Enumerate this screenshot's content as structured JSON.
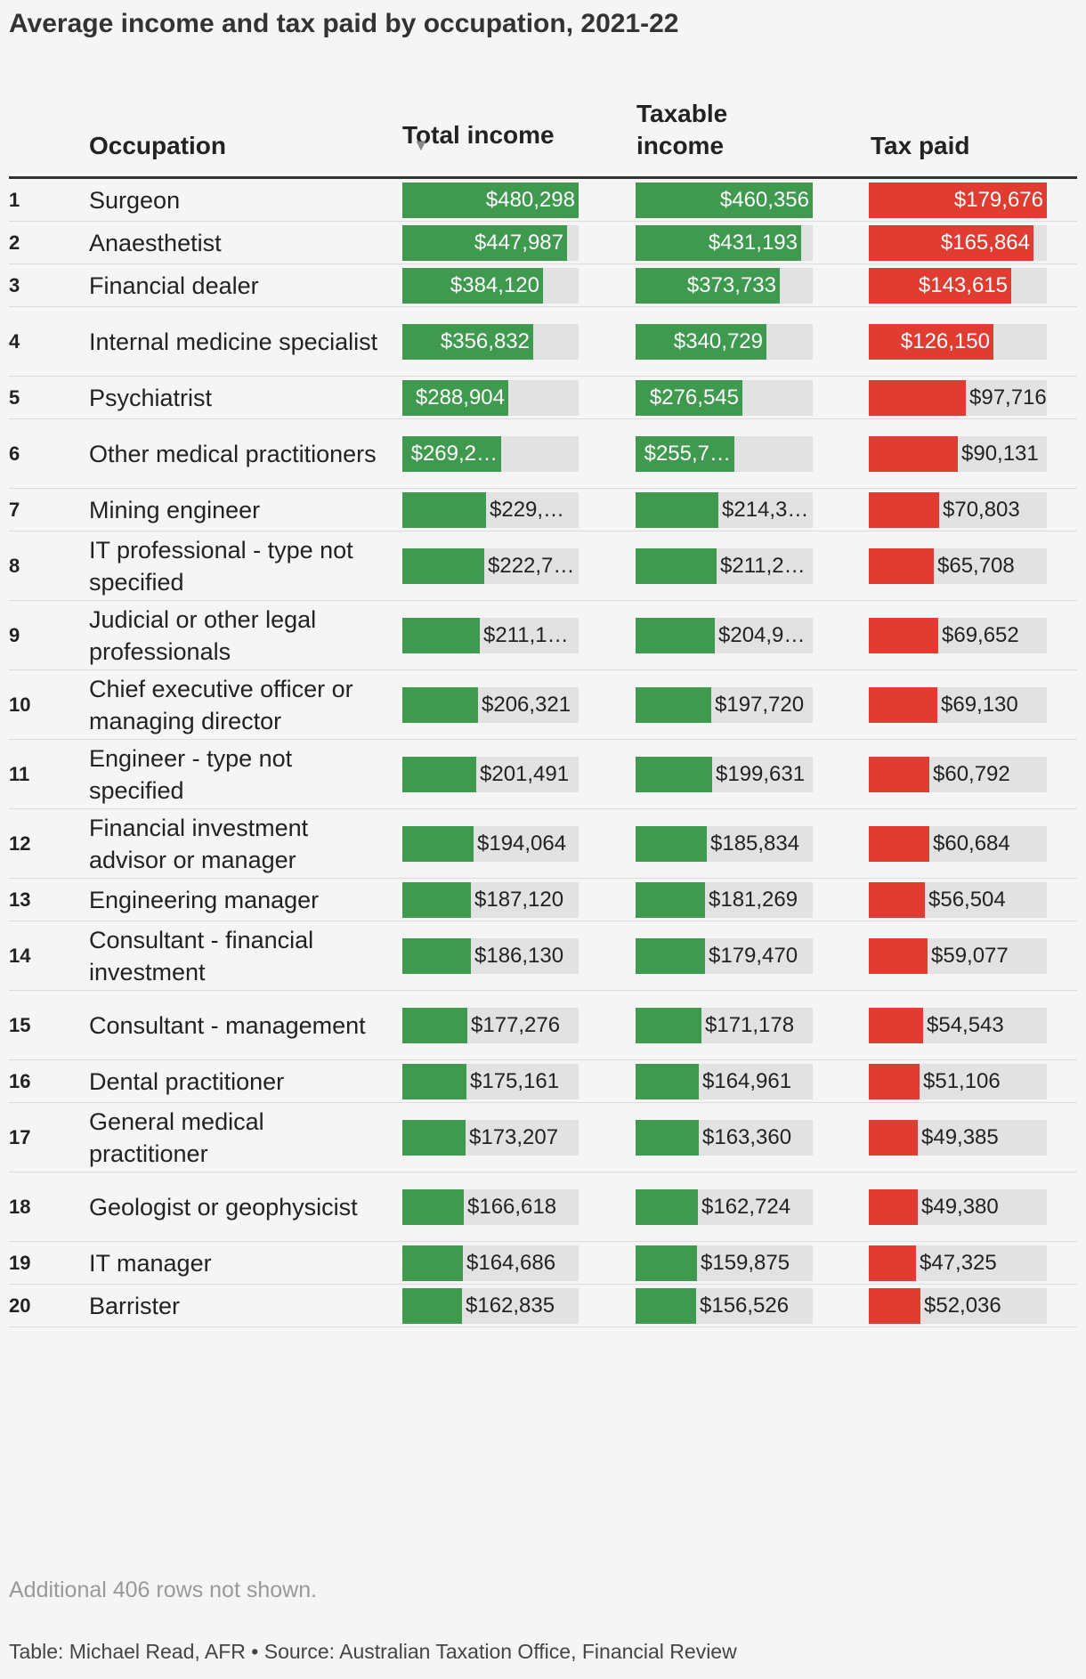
{
  "title": "Average income and tax paid by occupation, 2021-22",
  "columns": {
    "occupation": "Occupation",
    "total_income": "Total income",
    "taxable_income": "Taxable income",
    "tax_paid": "Tax paid",
    "sort_indicator": "▼"
  },
  "note": "Additional 406 rows not shown.",
  "source": "Table: Michael Read, AFR • Source: Australian Taxation Office, Financial Review",
  "colors": {
    "income": "#3f9a4f",
    "tax": "#e03c31",
    "track": "#e2e2e2"
  },
  "chart_data": {
    "type": "table",
    "columns": [
      "Occupation",
      "Total income",
      "Taxable income",
      "Tax paid"
    ],
    "max": {
      "total_income": 480298,
      "taxable_income": 460356,
      "tax_paid": 179676
    },
    "rows": [
      {
        "rank": "1",
        "occupation": "Surgeon",
        "total_income": 480298,
        "taxable_income": 460356,
        "tax_paid": 179676,
        "total_label": "$480,298",
        "taxable_label": "$460,356",
        "tax_label": "$179,676"
      },
      {
        "rank": "2",
        "occupation": "Anaesthetist",
        "total_income": 447987,
        "taxable_income": 431193,
        "tax_paid": 165864,
        "total_label": "$447,987",
        "taxable_label": "$431,193",
        "tax_label": "$165,864"
      },
      {
        "rank": "3",
        "occupation": "Financial dealer",
        "total_income": 384120,
        "taxable_income": 373733,
        "tax_paid": 143615,
        "total_label": "$384,120",
        "taxable_label": "$373,733",
        "tax_label": "$143,615"
      },
      {
        "rank": "4",
        "occupation": "Internal medicine specialist",
        "total_income": 356832,
        "taxable_income": 340729,
        "tax_paid": 126150,
        "total_label": "$356,832",
        "taxable_label": "$340,729",
        "tax_label": "$126,150"
      },
      {
        "rank": "5",
        "occupation": "Psychiatrist",
        "total_income": 288904,
        "taxable_income": 276545,
        "tax_paid": 97716,
        "total_label": "$288,904",
        "taxable_label": "$276,545",
        "tax_label": "$97,716"
      },
      {
        "rank": "6",
        "occupation": "Other medical practitioners",
        "total_income": 269200,
        "taxable_income": 255700,
        "tax_paid": 90131,
        "total_label": "$269,2…",
        "taxable_label": "$255,7…",
        "tax_label": "$90,131"
      },
      {
        "rank": "7",
        "occupation": "Mining engineer",
        "total_income": 229000,
        "taxable_income": 214300,
        "tax_paid": 70803,
        "total_label": "$229,…",
        "taxable_label": "$214,3…",
        "tax_label": "$70,803"
      },
      {
        "rank": "8",
        "occupation": "IT professional - type not specified",
        "total_income": 222700,
        "taxable_income": 211200,
        "tax_paid": 65708,
        "total_label": "$222,7…",
        "taxable_label": "$211,2…",
        "tax_label": "$65,708"
      },
      {
        "rank": "9",
        "occupation": "Judicial or other legal professionals",
        "total_income": 211100,
        "taxable_income": 204900,
        "tax_paid": 69652,
        "total_label": "$211,1…",
        "taxable_label": "$204,9…",
        "tax_label": "$69,652"
      },
      {
        "rank": "10",
        "occupation": "Chief executive officer or managing director",
        "total_income": 206321,
        "taxable_income": 197720,
        "tax_paid": 69130,
        "total_label": "$206,321",
        "taxable_label": "$197,720",
        "tax_label": "$69,130"
      },
      {
        "rank": "11",
        "occupation": "Engineer - type not specified",
        "total_income": 201491,
        "taxable_income": 199631,
        "tax_paid": 60792,
        "total_label": "$201,491",
        "taxable_label": "$199,631",
        "tax_label": "$60,792"
      },
      {
        "rank": "12",
        "occupation": "Financial investment advisor or manager",
        "total_income": 194064,
        "taxable_income": 185834,
        "tax_paid": 60684,
        "total_label": "$194,064",
        "taxable_label": "$185,834",
        "tax_label": "$60,684"
      },
      {
        "rank": "13",
        "occupation": "Engineering manager",
        "total_income": 187120,
        "taxable_income": 181269,
        "tax_paid": 56504,
        "total_label": "$187,120",
        "taxable_label": "$181,269",
        "tax_label": "$56,504"
      },
      {
        "rank": "14",
        "occupation": "Consultant - financial investment",
        "total_income": 186130,
        "taxable_income": 179470,
        "tax_paid": 59077,
        "total_label": "$186,130",
        "taxable_label": "$179,470",
        "tax_label": "$59,077"
      },
      {
        "rank": "15",
        "occupation": "Consultant - management",
        "total_income": 177276,
        "taxable_income": 171178,
        "tax_paid": 54543,
        "total_label": "$177,276",
        "taxable_label": "$171,178",
        "tax_label": "$54,543"
      },
      {
        "rank": "16",
        "occupation": "Dental practitioner",
        "total_income": 175161,
        "taxable_income": 164961,
        "tax_paid": 51106,
        "total_label": "$175,161",
        "taxable_label": "$164,961",
        "tax_label": "$51,106"
      },
      {
        "rank": "17",
        "occupation": "General medical practitioner",
        "total_income": 173207,
        "taxable_income": 163360,
        "tax_paid": 49385,
        "total_label": "$173,207",
        "taxable_label": "$163,360",
        "tax_label": "$49,385"
      },
      {
        "rank": "18",
        "occupation": "Geologist or geophysicist",
        "total_income": 166618,
        "taxable_income": 162724,
        "tax_paid": 49380,
        "total_label": "$166,618",
        "taxable_label": "$162,724",
        "tax_label": "$49,380"
      },
      {
        "rank": "19",
        "occupation": "IT manager",
        "total_income": 164686,
        "taxable_income": 159875,
        "tax_paid": 47325,
        "total_label": "$164,686",
        "taxable_label": "$159,875",
        "tax_label": "$47,325"
      },
      {
        "rank": "20",
        "occupation": "Barrister",
        "total_income": 162835,
        "taxable_income": 156526,
        "tax_paid": 52036,
        "total_label": "$162,835",
        "taxable_label": "$156,526",
        "tax_label": "$52,036"
      }
    ]
  }
}
